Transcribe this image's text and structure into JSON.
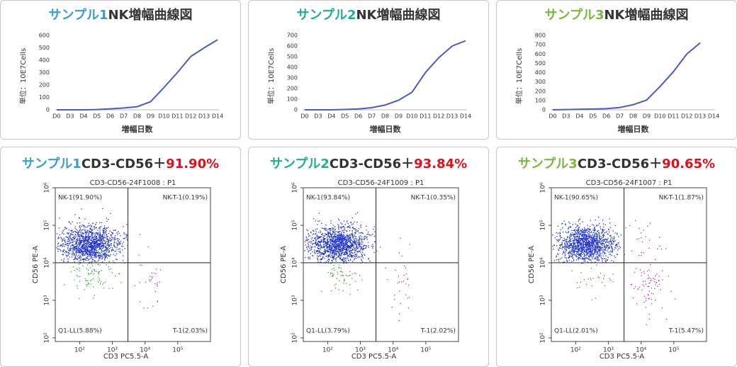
{
  "chart_data": [
    {
      "type": "line",
      "sample": "サンプル1",
      "sample_color": "#3a9fc6",
      "title": "NK増幅曲線図",
      "ylabel": "単位：10E7Cells",
      "xlabel": "増幅日数",
      "categories": [
        "D0",
        "D3",
        "D4",
        "D5",
        "D6",
        "D7",
        "D8",
        "D9",
        "D10",
        "D11",
        "D12",
        "D13",
        "D14"
      ],
      "values": [
        0,
        0,
        0,
        2,
        8,
        15,
        25,
        65,
        180,
        300,
        430,
        500,
        565
      ],
      "color": "#4a5bc4",
      "ylim": [
        0,
        600
      ],
      "yticks": [
        0,
        100,
        200,
        300,
        400,
        500,
        600
      ]
    },
    {
      "type": "line",
      "sample": "サンプル2",
      "sample_color": "#1fae94",
      "title": "NK増幅曲線図",
      "ylabel": "単位：10E7Cells",
      "xlabel": "増幅日数",
      "categories": [
        "D0",
        "D3",
        "D4",
        "D5",
        "D6",
        "D7",
        "D8",
        "D9",
        "D10",
        "D11",
        "D12",
        "D13",
        "D14"
      ],
      "values": [
        0,
        0,
        0,
        3,
        8,
        20,
        45,
        90,
        165,
        350,
        490,
        600,
        650
      ],
      "color": "#4a5bc4",
      "ylim": [
        0,
        700
      ],
      "yticks": [
        0,
        100,
        200,
        300,
        400,
        500,
        600,
        700
      ]
    },
    {
      "type": "line",
      "sample": "サンプル3",
      "sample_color": "#7ab840",
      "title": "NK増幅曲線図",
      "ylabel": "単位：10E7Cells",
      "xlabel": "増幅日数",
      "categories": [
        "D0",
        "D3",
        "D4",
        "D5",
        "D6",
        "D7",
        "D8",
        "D9",
        "D10",
        "D11",
        "D12",
        "D13",
        "D14"
      ],
      "values": [
        0,
        3,
        6,
        9,
        12,
        25,
        55,
        105,
        250,
        410,
        600,
        720,
        null
      ],
      "color": "#4a5bc4",
      "ylim": [
        0,
        800
      ],
      "yticks": [
        0,
        100,
        200,
        300,
        400,
        500,
        600,
        700,
        800
      ]
    },
    {
      "type": "flow",
      "sample": "サンプル1",
      "sample_color": "#3a9fc6",
      "title": "CD3-CD56＋",
      "result": "91.90%",
      "result_color": "#e0101a",
      "subtitle": "CD3-CD56-24F1008 : P1",
      "xlabel": "CD3 PC5.5-A",
      "ylabel": "CD56 PE-A",
      "log": true,
      "xlim": [
        18,
        1000000
      ],
      "ylim": [
        80,
        1000000
      ],
      "xticks": [
        {
          "value": 100,
          "label": "10²"
        },
        {
          "value": 1000,
          "label": "10³"
        },
        {
          "value": 10000,
          "label": "10⁴"
        },
        {
          "value": 100000,
          "label": "10⁵"
        }
      ],
      "yticks": [
        {
          "value": 100,
          "label": "10²"
        },
        {
          "value": 1000,
          "label": "10³"
        },
        {
          "value": 10000,
          "label": "10⁴"
        },
        {
          "value": 100000,
          "label": "10⁵"
        },
        {
          "value": 1000000,
          "label": "10⁶"
        }
      ],
      "gate": {
        "x": 3000,
        "y": 10000
      },
      "quadrants": [
        {
          "label": "NK-1(91.90%)",
          "value": 91.9,
          "color": "#1a2fd0"
        },
        {
          "label": "NK-T-1(0.19%)",
          "value": 0.19,
          "color": "#a04848"
        },
        {
          "label": "Q1-LL(5.88%)",
          "value": 5.88,
          "color": "#3a9b3a"
        },
        {
          "label": "T-1(2.03%)",
          "value": 2.03,
          "color": "#b030b0"
        }
      ]
    },
    {
      "type": "flow",
      "sample": "サンプル2",
      "sample_color": "#1fae94",
      "title": "CD3-CD56＋",
      "result": "93.84%",
      "result_color": "#e0101a",
      "subtitle": "CD3-CD56-24F1009 : P1",
      "xlabel": "CD3 PC5.5-A",
      "ylabel": "CD56 PE-A",
      "log": true,
      "xlim": [
        18,
        1000000
      ],
      "ylim": [
        80,
        1000000
      ],
      "xticks": [
        {
          "value": 100,
          "label": "10²"
        },
        {
          "value": 1000,
          "label": "10³"
        },
        {
          "value": 10000,
          "label": "10⁴"
        },
        {
          "value": 100000,
          "label": "10⁵"
        }
      ],
      "yticks": [
        {
          "value": 100,
          "label": "10²"
        },
        {
          "value": 1000,
          "label": "10³"
        },
        {
          "value": 10000,
          "label": "10⁴"
        },
        {
          "value": 100000,
          "label": "10⁵"
        },
        {
          "value": 1000000,
          "label": "10⁶"
        }
      ],
      "gate": {
        "x": 3000,
        "y": 10000
      },
      "quadrants": [
        {
          "label": "NK-1(93.84%)",
          "value": 93.84,
          "color": "#1a2fd0"
        },
        {
          "label": "NK-T-1(0.35%)",
          "value": 0.35,
          "color": "#a04848"
        },
        {
          "label": "Q1-LL(3.79%)",
          "value": 3.79,
          "color": "#3a9b3a"
        },
        {
          "label": "T-1(2.02%)",
          "value": 2.02,
          "color": "#b030b0"
        }
      ]
    },
    {
      "type": "flow",
      "sample": "サンプル3",
      "sample_color": "#7ab840",
      "title": "CD3-CD56＋",
      "result": "90.65%",
      "result_color": "#e0101a",
      "subtitle": "CD3-CD56-24F1007 : P1",
      "xlabel": "CD3 PC5.5-A",
      "ylabel": "CD56 PE-A",
      "log": true,
      "xlim": [
        18,
        1000000
      ],
      "ylim": [
        80,
        1000000
      ],
      "xticks": [
        {
          "value": 100,
          "label": "10²"
        },
        {
          "value": 1000,
          "label": "10³"
        },
        {
          "value": 10000,
          "label": "10⁴"
        },
        {
          "value": 100000,
          "label": "10⁵"
        }
      ],
      "yticks": [
        {
          "value": 100,
          "label": "10²"
        },
        {
          "value": 1000,
          "label": "10³"
        },
        {
          "value": 10000,
          "label": "10⁴"
        },
        {
          "value": 100000,
          "label": "10⁵"
        },
        {
          "value": 1000000,
          "label": "10⁶"
        }
      ],
      "gate": {
        "x": 3000,
        "y": 10000
      },
      "quadrants": [
        {
          "label": "NK-1(90.65%)",
          "value": 90.65,
          "color": "#1a2fd0"
        },
        {
          "label": "NK-T-1(1.87%)",
          "value": 1.87,
          "color": "#a04848"
        },
        {
          "label": "Q1-LL(2.01%)",
          "value": 2.01,
          "color": "#3a9b3a"
        },
        {
          "label": "T-1(5.47%)",
          "value": 5.47,
          "color": "#b030b0"
        }
      ]
    }
  ]
}
